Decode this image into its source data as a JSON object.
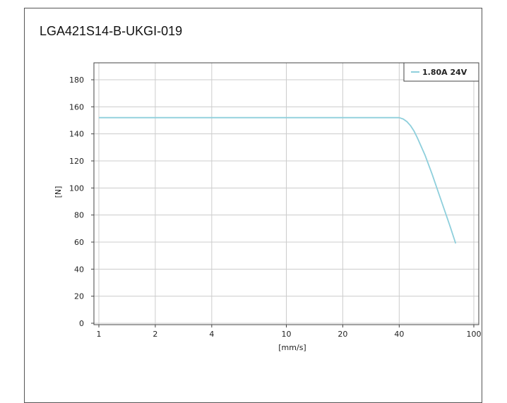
{
  "chart_data": {
    "type": "line",
    "title": "LGA421S14-B-UKGI-019",
    "xlabel": "[mm/s]",
    "ylabel": "[N]",
    "x_scale": "log",
    "xlim": [
      1,
      100
    ],
    "ylim": [
      0,
      180
    ],
    "x_ticks": [
      1,
      2,
      4,
      10,
      20,
      40,
      100
    ],
    "y_ticks": [
      0,
      20,
      40,
      60,
      80,
      100,
      120,
      140,
      160,
      180
    ],
    "grid": true,
    "legend_position": "top-right",
    "series": [
      {
        "name": "1.80A 24V",
        "color": "#8ecfdc",
        "x": [
          1,
          2,
          4,
          10,
          20,
          40,
          42,
          44,
          46,
          48,
          50,
          55,
          60,
          65,
          70,
          75,
          80
        ],
        "y": [
          152,
          152,
          152,
          152,
          152,
          152,
          151,
          149,
          146,
          142,
          137,
          124,
          110,
          96,
          83,
          71,
          59
        ]
      }
    ]
  }
}
